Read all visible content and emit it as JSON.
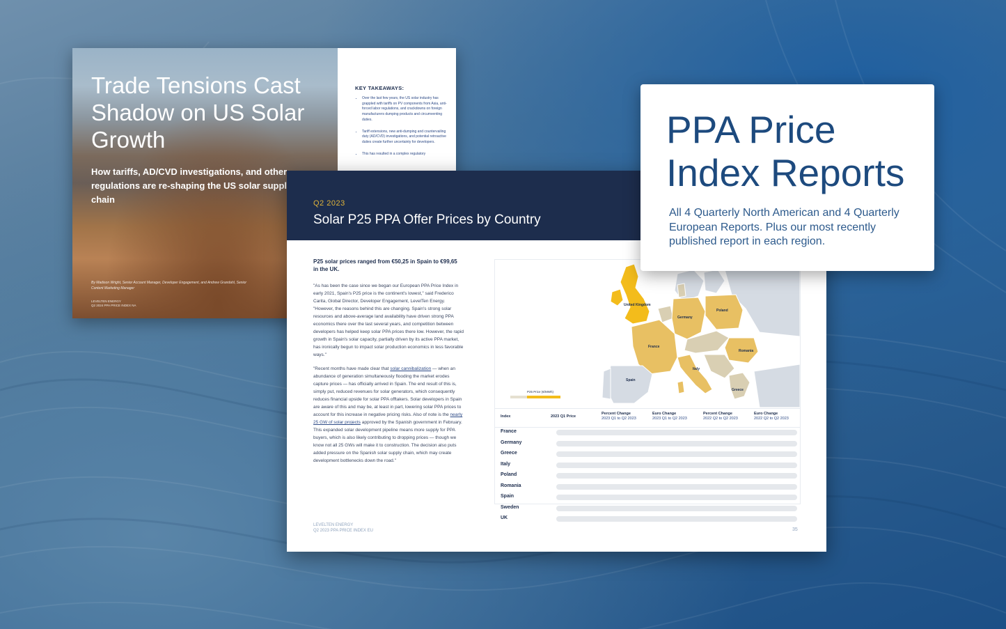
{
  "back_report": {
    "title": "Trade Tensions Cast Shadow on US Solar Growth",
    "subtitle": "How tariffs, AD/CVD investigations, and other regulations are re-shaping the US solar supply chain",
    "authors": "By Madison Wright, Senior Account Manager, Developer Engagement, and Andrew Grandahl, Senior Content Marketing Manager",
    "brand_line1": "LEVELTEN ENERGY",
    "brand_line2": "Q2 2024 PPA PRICE INDEX NA",
    "takeaways_title": "KEY TAKEAWAYS:",
    "takeaways": [
      "Over the last few years, the US solar industry has grappled with tariffs on PV components from Asia, anti-forced labor regulations, and crackdowns on foreign manufacturers dumping products and circumventing duties.",
      "Tariff extensions, new anti-dumping and countervailing duty (AD/CVD) investigations, and potential retroactive duties create further uncertainty for developers.",
      "This has resulted in a complex regulatory"
    ]
  },
  "front_report": {
    "eyebrow": "Q2 2023",
    "title": "Solar P25 PPA Offer Prices by Country",
    "lead": "P25 solar prices ranged from €50,25 in Spain to €99,65 in the UK.",
    "para1": "\"As has been the case since we began our European PPA Price Index in early 2021, Spain's P25 price is the continent's lowest,\" said Frederico Carita, Global Director, Developer Engagement, LevelTen Energy. \"However, the reasons behind this are changing. Spain's strong solar resources and above-average land availability have driven strong PPA economics there over the last several years, and competition between developers has helped keep solar PPA prices there low. However, the rapid growth in Spain's solar capacity, partially driven by its active PPA market, has ironically begun to impact solar production economics in less favorable ways.\"",
    "para2_a": "\"Recent months have made clear that ",
    "para2_link": "solar cannibalization",
    "para2_b": " — when an abundance of generation simultaneously flooding the market erodes capture prices — has officially arrived in Spain. The end result of this is, simply put, reduced revenues for solar generators, which consequently reduces financial upside for solar PPA offtakers. Solar developers in Spain are aware of this and may be, at least in part, lowering solar PPA prices to account for this increase in negative pricing risks. Also of note is the ",
    "para2_link2": "nearly 25 GW of solar projects",
    "para2_c": " approved by the Spanish government in February. This expanded solar development pipeline means more supply for PPA buyers, which is also likely contributing to dropping prices — though we know not all 25 GWs will make it to construction. The decision also puts added pressure on the Spanish solar supply chain, which may create development bottlenecks down the road.\"",
    "brand_line1": "LEVELTEN ENERGY",
    "brand_line2": "Q2 2023 PPA PRICE INDEX EU",
    "page_number": "35",
    "map": {
      "legend_label": "P25 Price (€/MWh)",
      "country_labels": [
        "United Kingdom",
        "Germany",
        "Poland",
        "France",
        "Romania",
        "Italy",
        "Spain",
        "Greece"
      ],
      "colors": {
        "high": "#f3bc1b",
        "mid": "#e8c063",
        "low": "#d9cfb3",
        "none": "#d5dbe3"
      }
    },
    "table": {
      "headers": [
        {
          "title": "Index",
          "sub": ""
        },
        {
          "title": "2023 Q1 Price",
          "sub": ""
        },
        {
          "title": "Percent Change",
          "sub": "2023 Q1 to Q2 2023"
        },
        {
          "title": "Euro Change",
          "sub": "2023 Q1 to Q2 2023"
        },
        {
          "title": "Percent Change",
          "sub": "2022 Q2 to Q2 2023"
        },
        {
          "title": "Euro Change",
          "sub": "2022 Q2 to Q2 2023"
        }
      ],
      "rows": [
        "France",
        "Germany",
        "Greece",
        "Italy",
        "Poland",
        "Romania",
        "Spain",
        "Sweden",
        "UK"
      ]
    }
  },
  "promo": {
    "title": "PPA Price Index Reports",
    "text": "All 4 Quarterly North American and 4 Quarterly European Reports. Plus our most recently published report in each region."
  }
}
